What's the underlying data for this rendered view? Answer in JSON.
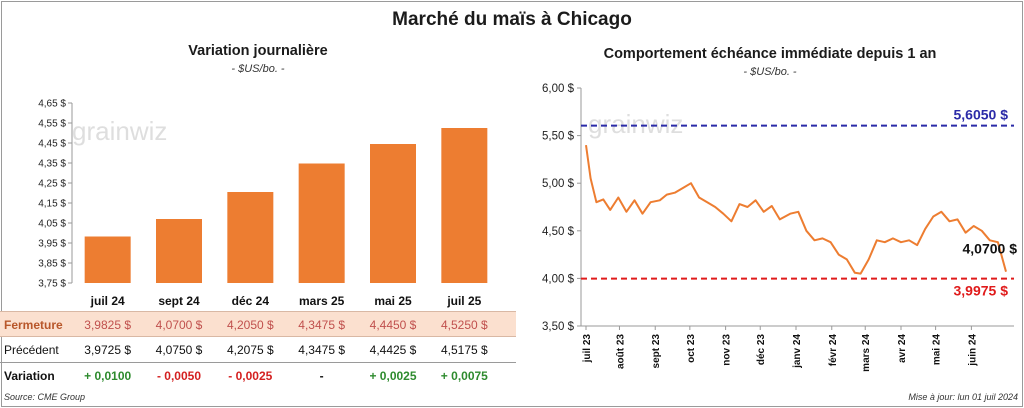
{
  "title": "Marché du maïs à Chicago",
  "left_panel": {
    "title": "Variation journalière",
    "subtitle": "- $US/bo. -",
    "watermark": "grainwiz",
    "table": {
      "row_close_label": "Fermeture",
      "row_prev_label": "Précédent",
      "row_var_label": "Variation",
      "close": [
        "3,9825 $",
        "4,0700 $",
        "4,2050 $",
        "4,3475 $",
        "4,4450 $",
        "4,5250 $"
      ],
      "prev": [
        "3,9725 $",
        "4,0750 $",
        "4,2075 $",
        "4,3475 $",
        "4,4425 $",
        "4,5175 $"
      ],
      "var": [
        "+ 0,0100",
        "- 0,0050",
        "- 0,0025",
        "-",
        "+ 0,0025",
        "+ 0,0075"
      ],
      "var_sign": [
        "pos",
        "neg",
        "neg",
        "neu",
        "pos",
        "pos"
      ]
    }
  },
  "right_panel": {
    "title": "Comportement  échéance immédiate depuis 1 an",
    "subtitle": "- $US/bo. -",
    "watermark": "grainwiz"
  },
  "footer": {
    "source": "Source: CME Group",
    "updated": "Mise à jour: lun 01 juil 2024"
  },
  "colors": {
    "bar": "#ed7d31",
    "line": "#ed7d31",
    "high": "#2b2ba8",
    "low": "#e01b1b"
  },
  "chart_data": [
    {
      "type": "bar",
      "title": "Variation journalière",
      "categories": [
        "juil 24",
        "sept 24",
        "déc 24",
        "mars 25",
        "mai 25",
        "juil 25"
      ],
      "values": [
        3.9825,
        4.07,
        4.205,
        4.3475,
        4.445,
        4.525
      ],
      "ylim": [
        3.75,
        4.65
      ],
      "yticks": [
        3.75,
        3.85,
        3.95,
        4.05,
        4.15,
        4.25,
        4.35,
        4.45,
        4.55,
        4.65
      ],
      "ytick_labels": [
        "3,75 $",
        "3,85 $",
        "3,95 $",
        "4,05 $",
        "4,15 $",
        "4,25 $",
        "4,35 $",
        "4,45 $",
        "4,55 $",
        "4,65 $"
      ],
      "grid": false
    },
    {
      "type": "line",
      "title": "Comportement  échéance immédiate depuis 1 an",
      "x_start": "2023-07-03",
      "x_end": "2024-07-01",
      "xtick_labels": [
        "juil 23",
        "août 23",
        "sept 23",
        "oct 23",
        "nov 23",
        "déc 23",
        "janv 24",
        "févr 24",
        "mars 24",
        "avr 24",
        "mai 24",
        "juin 24"
      ],
      "xtick_dates": [
        "2023-07-01",
        "2023-08-01",
        "2023-09-01",
        "2023-10-01",
        "2023-11-01",
        "2023-12-01",
        "2024-01-01",
        "2024-02-01",
        "2024-03-01",
        "2024-04-01",
        "2024-05-01",
        "2024-06-01"
      ],
      "ylim": [
        3.5,
        6.0
      ],
      "yticks": [
        3.5,
        4.0,
        4.5,
        5.0,
        5.5,
        6.0
      ],
      "ytick_labels": [
        "3,50 $",
        "4,00 $",
        "4,50 $",
        "5,00 $",
        "5,50 $",
        "6,00 $"
      ],
      "series": [
        {
          "x": [
            "2023-07-03",
            "2023-07-07",
            "2023-07-12",
            "2023-07-18",
            "2023-07-24",
            "2023-07-31",
            "2023-08-07",
            "2023-08-14",
            "2023-08-21",
            "2023-08-28",
            "2023-09-05",
            "2023-09-11",
            "2023-09-18",
            "2023-09-25",
            "2023-10-02",
            "2023-10-09",
            "2023-10-16",
            "2023-10-23",
            "2023-10-30",
            "2023-11-06",
            "2023-11-13",
            "2023-11-20",
            "2023-11-27",
            "2023-12-04",
            "2023-12-11",
            "2023-12-18",
            "2023-12-27",
            "2024-01-03",
            "2024-01-10",
            "2024-01-17",
            "2024-01-24",
            "2024-01-31",
            "2024-02-07",
            "2024-02-14",
            "2024-02-21",
            "2024-02-26",
            "2024-03-04",
            "2024-03-11",
            "2024-03-18",
            "2024-03-25",
            "2024-04-01",
            "2024-04-08",
            "2024-04-15",
            "2024-04-22",
            "2024-04-29",
            "2024-05-06",
            "2024-05-13",
            "2024-05-20",
            "2024-05-27",
            "2024-06-03",
            "2024-06-10",
            "2024-06-17",
            "2024-06-24",
            "2024-07-01"
          ],
          "y": [
            5.4,
            5.05,
            4.8,
            4.83,
            4.72,
            4.85,
            4.7,
            4.82,
            4.68,
            4.8,
            4.82,
            4.88,
            4.9,
            4.95,
            5.0,
            4.85,
            4.8,
            4.75,
            4.68,
            4.6,
            4.78,
            4.75,
            4.82,
            4.7,
            4.76,
            4.62,
            4.68,
            4.7,
            4.5,
            4.4,
            4.42,
            4.38,
            4.25,
            4.2,
            4.06,
            4.05,
            4.2,
            4.4,
            4.38,
            4.42,
            4.38,
            4.4,
            4.35,
            4.52,
            4.65,
            4.7,
            4.6,
            4.62,
            4.48,
            4.55,
            4.5,
            4.4,
            4.38,
            4.07
          ]
        }
      ],
      "reference_lines": [
        {
          "value": 5.605,
          "label": "5,6050 $",
          "color": "#2b2ba8"
        },
        {
          "value": 3.9975,
          "label": "3,9975 $",
          "color": "#e01b1b"
        }
      ],
      "last_label": "4,0700 $",
      "grid": false
    }
  ]
}
